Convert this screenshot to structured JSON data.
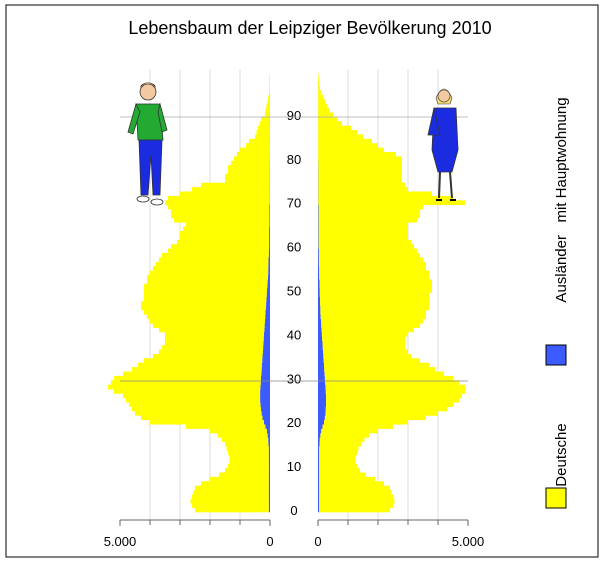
{
  "chart_data": {
    "type": "pyramid",
    "title": "Lebensbaum der Leipziger Bevölkerung 2010",
    "y": [
      0,
      1,
      2,
      3,
      4,
      5,
      6,
      7,
      8,
      9,
      10,
      11,
      12,
      13,
      14,
      15,
      16,
      17,
      18,
      19,
      20,
      21,
      22,
      23,
      24,
      25,
      26,
      27,
      28,
      29,
      30,
      31,
      32,
      33,
      34,
      35,
      36,
      37,
      38,
      39,
      40,
      41,
      42,
      43,
      44,
      45,
      46,
      47,
      48,
      49,
      50,
      51,
      52,
      53,
      54,
      55,
      56,
      57,
      58,
      59,
      60,
      61,
      62,
      63,
      64,
      65,
      66,
      67,
      68,
      69,
      70,
      71,
      72,
      73,
      74,
      75,
      76,
      77,
      78,
      79,
      80,
      81,
      82,
      83,
      84,
      85,
      86,
      87,
      88,
      89,
      90,
      91,
      92,
      93,
      94,
      95,
      96,
      97,
      98,
      99
    ],
    "ylim": [
      0,
      100
    ],
    "yticks": [
      0,
      10,
      20,
      30,
      40,
      50,
      60,
      70,
      80,
      90
    ],
    "male_xlim": [
      5000,
      0
    ],
    "male_xticks": [
      {
        "value": 5000,
        "label": "5.000"
      },
      0
    ],
    "female_xlim": [
      0,
      5000
    ],
    "female_xticks": [
      0,
      {
        "value": 5000,
        "label": "5.000"
      }
    ],
    "grid_x": [
      1000,
      2000,
      3000,
      4000
    ],
    "series": [
      {
        "name": "Deutsche",
        "color": "#ffff00",
        "male": [
          2460,
          2560,
          2610,
          2560,
          2510,
          2460,
          2260,
          1960,
          1660,
          1460,
          1360,
          1310,
          1310,
          1360,
          1410,
          1450,
          1540,
          1670,
          1900,
          2650,
          3800,
          4050,
          4220,
          4300,
          4380,
          4470,
          4570,
          4870,
          5080,
          4990,
          4900,
          4610,
          4320,
          4130,
          3940,
          3650,
          3460,
          3370,
          3280,
          3290,
          3300,
          3510,
          3720,
          3830,
          3940,
          4050,
          4160,
          4170,
          4080,
          4090,
          4100,
          4110,
          4020,
          4030,
          3940,
          3840,
          3750,
          3650,
          3560,
          3360,
          3270,
          3070,
          2970,
          2970,
          2870,
          2780,
          3180,
          3280,
          3280,
          3380,
          3490,
          3390,
          2990,
          2590,
          2290,
          1490,
          1490,
          1390,
          1390,
          1290,
          1195,
          1095,
          995,
          795,
          695,
          495,
          445,
          395,
          345,
          295,
          165,
          145,
          115,
          85,
          55,
          25,
          15,
          10,
          5,
          2
        ],
        "female": [
          2360,
          2460,
          2510,
          2460,
          2410,
          2360,
          2160,
          1860,
          1560,
          1360,
          1260,
          1210,
          1210,
          1260,
          1310,
          1400,
          1490,
          1620,
          1890,
          2350,
          2800,
          3370,
          3750,
          4040,
          4230,
          4430,
          4530,
          4640,
          4650,
          4460,
          4270,
          3980,
          3690,
          3500,
          3210,
          2920,
          2830,
          2740,
          2750,
          2760,
          2870,
          3080,
          3290,
          3400,
          3510,
          3520,
          3620,
          3630,
          3630,
          3640,
          3740,
          3750,
          3750,
          3660,
          3660,
          3560,
          3570,
          3470,
          3370,
          3270,
          3180,
          3080,
          2980,
          2980,
          2980,
          2980,
          3280,
          3380,
          3380,
          3480,
          4890,
          4490,
          3790,
          2990,
          2890,
          2790,
          2790,
          2790,
          2790,
          2790,
          2795,
          2595,
          2195,
          1995,
          1795,
          1495,
          1295,
          1095,
          795,
          645,
          495,
          395,
          295,
          245,
          175,
          95,
          65,
          45,
          25,
          15
        ]
      },
      {
        "name": "Ausländer   mit Hauptwohnung",
        "color": "#3b5bff",
        "male": [
          40,
          40,
          40,
          40,
          40,
          40,
          40,
          40,
          40,
          40,
          40,
          40,
          40,
          40,
          40,
          50,
          60,
          80,
          100,
          150,
          200,
          250,
          280,
          300,
          320,
          330,
          330,
          330,
          320,
          310,
          300,
          290,
          280,
          270,
          260,
          250,
          240,
          230,
          220,
          210,
          200,
          190,
          180,
          170,
          160,
          150,
          140,
          130,
          120,
          110,
          100,
          90,
          80,
          70,
          60,
          60,
          50,
          50,
          40,
          40,
          30,
          30,
          30,
          30,
          30,
          20,
          20,
          20,
          20,
          20,
          10,
          10,
          10,
          10,
          10,
          10,
          10,
          10,
          10,
          10,
          5,
          5,
          5,
          5,
          5,
          5,
          5,
          5,
          5,
          5,
          5,
          5,
          5,
          5,
          5,
          5,
          5,
          5,
          5,
          3
        ],
        "female": [
          40,
          40,
          40,
          40,
          40,
          40,
          40,
          40,
          40,
          40,
          40,
          40,
          40,
          40,
          40,
          50,
          60,
          80,
          110,
          150,
          200,
          230,
          250,
          260,
          270,
          270,
          270,
          260,
          250,
          240,
          230,
          220,
          210,
          200,
          190,
          180,
          170,
          160,
          150,
          140,
          130,
          120,
          110,
          100,
          90,
          80,
          80,
          70,
          70,
          60,
          60,
          50,
          50,
          40,
          40,
          40,
          30,
          30,
          30,
          30,
          20,
          20,
          20,
          20,
          20,
          20,
          20,
          20,
          20,
          20,
          10,
          10,
          10,
          10,
          10,
          10,
          10,
          10,
          10,
          10,
          5,
          5,
          5,
          5,
          5,
          5,
          5,
          5,
          5,
          5,
          5,
          5,
          5,
          5,
          5,
          5,
          5,
          5,
          5,
          5
        ]
      }
    ]
  }
}
